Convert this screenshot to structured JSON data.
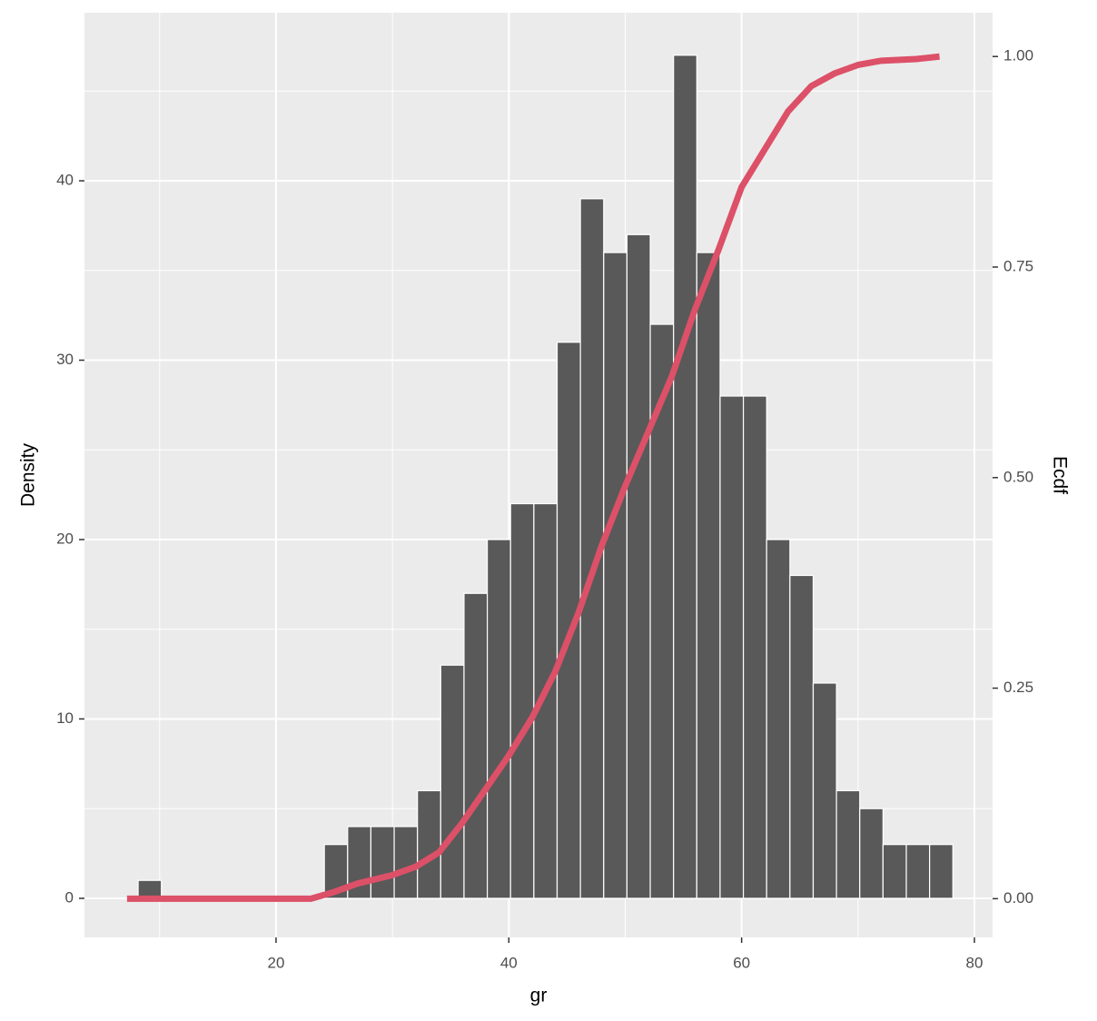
{
  "chart_data": {
    "type": "histogram",
    "x_label": "gr",
    "y_label": "Density",
    "y2_label": "Ecdf",
    "bins": [
      8.15,
      10.15,
      12.15,
      14.15,
      16.15,
      18.15,
      20.15,
      22.15,
      24.15,
      26.15,
      28.15,
      30.15,
      32.15,
      34.15,
      36.15,
      38.15,
      40.15,
      42.15,
      44.15,
      46.15,
      48.15,
      50.15,
      52.15,
      54.15,
      56.15,
      58.15,
      60.15,
      62.15,
      64.15,
      66.15,
      68.15,
      70.15,
      72.15,
      74.15,
      76.15,
      78.15
    ],
    "values": [
      1,
      0,
      0,
      0,
      0,
      0,
      0,
      0,
      3,
      4,
      4,
      4,
      6,
      13,
      17,
      20,
      22,
      22,
      31,
      39,
      36,
      37,
      32,
      47,
      36,
      28,
      28,
      20,
      18,
      12,
      6,
      5,
      3,
      3,
      3
    ],
    "color": "#595959",
    "line": {
      "axis": "y2",
      "color": "#dc5068",
      "x": [
        7.2,
        23,
        25,
        27,
        30,
        32,
        34,
        36,
        38,
        40,
        42,
        44,
        46,
        48,
        50,
        52,
        54,
        56,
        58,
        60,
        62,
        64,
        66,
        68,
        70,
        72,
        75,
        77
      ],
      "values": [
        0,
        0,
        0.008,
        0.018,
        0.028,
        0.038,
        0.055,
        0.09,
        0.13,
        0.17,
        0.215,
        0.27,
        0.34,
        0.42,
        0.49,
        0.555,
        0.62,
        0.7,
        0.77,
        0.845,
        0.89,
        0.935,
        0.965,
        0.98,
        0.99,
        0.995,
        0.997,
        1.0
      ]
    },
    "xlim": [
      3.54,
      81.56
    ],
    "xticks": [
      20,
      40,
      60,
      80
    ],
    "minor_xticks": [
      10,
      30,
      50,
      70
    ],
    "ylim": [
      -2.18,
      49.37
    ],
    "yticks": [
      0,
      10,
      20,
      30,
      40
    ],
    "minor_yticks": [
      5,
      15,
      25,
      35,
      45
    ],
    "y2lim": [
      -0.046,
      1.052
    ],
    "y2ticks": [
      {
        "value": 0,
        "label": "0.00"
      },
      {
        "value": 0.25,
        "label": "0.25"
      },
      {
        "value": 0.5,
        "label": "0.50"
      },
      {
        "value": 0.75,
        "label": "0.75"
      },
      {
        "value": 1,
        "label": "1.00"
      }
    ],
    "grid": true
  }
}
